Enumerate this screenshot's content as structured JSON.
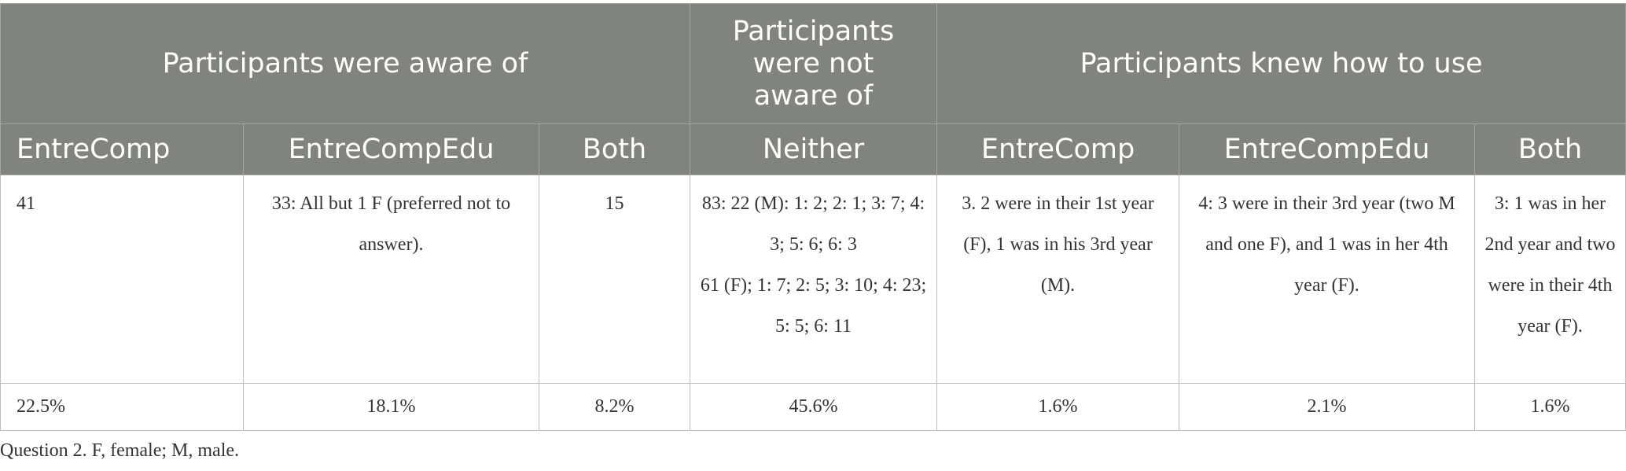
{
  "group_headers": {
    "aware": "Participants were aware of",
    "not_aware": "Participants were not aware of",
    "knew": "Participants knew how to use"
  },
  "column_headers": [
    "EntreComp",
    "EntreCompEdu",
    "Both",
    "Neither",
    "EntreComp",
    "EntreCompEdu",
    "Both"
  ],
  "counts_row": {
    "aware_entrecomp": "41",
    "aware_entrecompedu": "33: All but 1 F (preferred not to answer).",
    "aware_both": "15",
    "neither_line1": "83: 22 (M): 1: 2; 2: 1; 3: 7; 4: 3; 5: 6; 6: 3",
    "neither_line2": "61 (F); 1: 7; 2: 5; 3: 10; 4: 23; 5: 5; 6: 11",
    "knew_entrecomp": "3. 2 were in their 1st year (F), 1 was in his 3rd year (M).",
    "knew_entrecompedu": "4: 3 were in their 3rd year (two M and one F), and 1 was in her 4th year (F).",
    "knew_both": "3: 1 was in her 2nd year and two were in their 4th year (F)."
  },
  "percent_row": [
    "22.5%",
    "18.1%",
    "8.2%",
    "45.6%",
    "1.6%",
    "2.1%",
    "1.6%"
  ],
  "footnote": "Question 2. F, female; M, male."
}
